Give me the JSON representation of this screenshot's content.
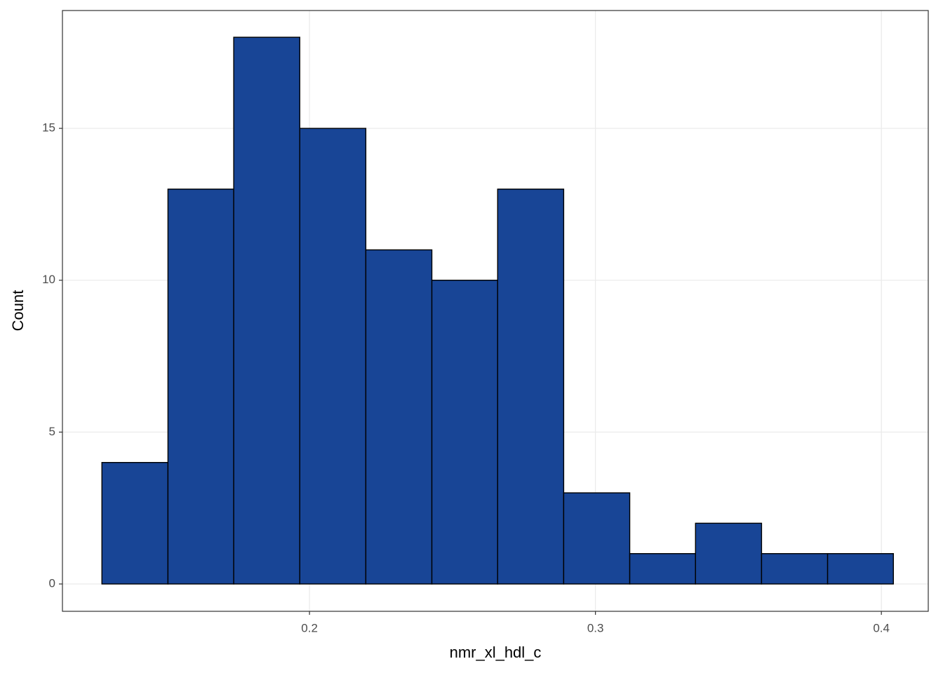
{
  "chart_data": {
    "type": "histogram",
    "x_label": "nmr_xl_hdl_c",
    "y_label": "Count",
    "bins": [
      0.1274,
      0.1505,
      0.1735,
      0.1966,
      0.2197,
      0.2428,
      0.2658,
      0.2889,
      0.312,
      0.335,
      0.3581,
      0.3812,
      0.4042
    ],
    "counts": [
      4,
      13,
      18,
      15,
      11,
      10,
      13,
      3,
      1,
      2,
      1,
      1
    ],
    "color": "#184596",
    "xlim": [
      0.1136,
      0.4164
    ],
    "xticks": [
      0.2,
      0.3,
      0.4
    ],
    "ylim": [
      -0.9,
      18.88
    ],
    "yticks": [
      0,
      5,
      10,
      15
    ],
    "grid": true
  }
}
